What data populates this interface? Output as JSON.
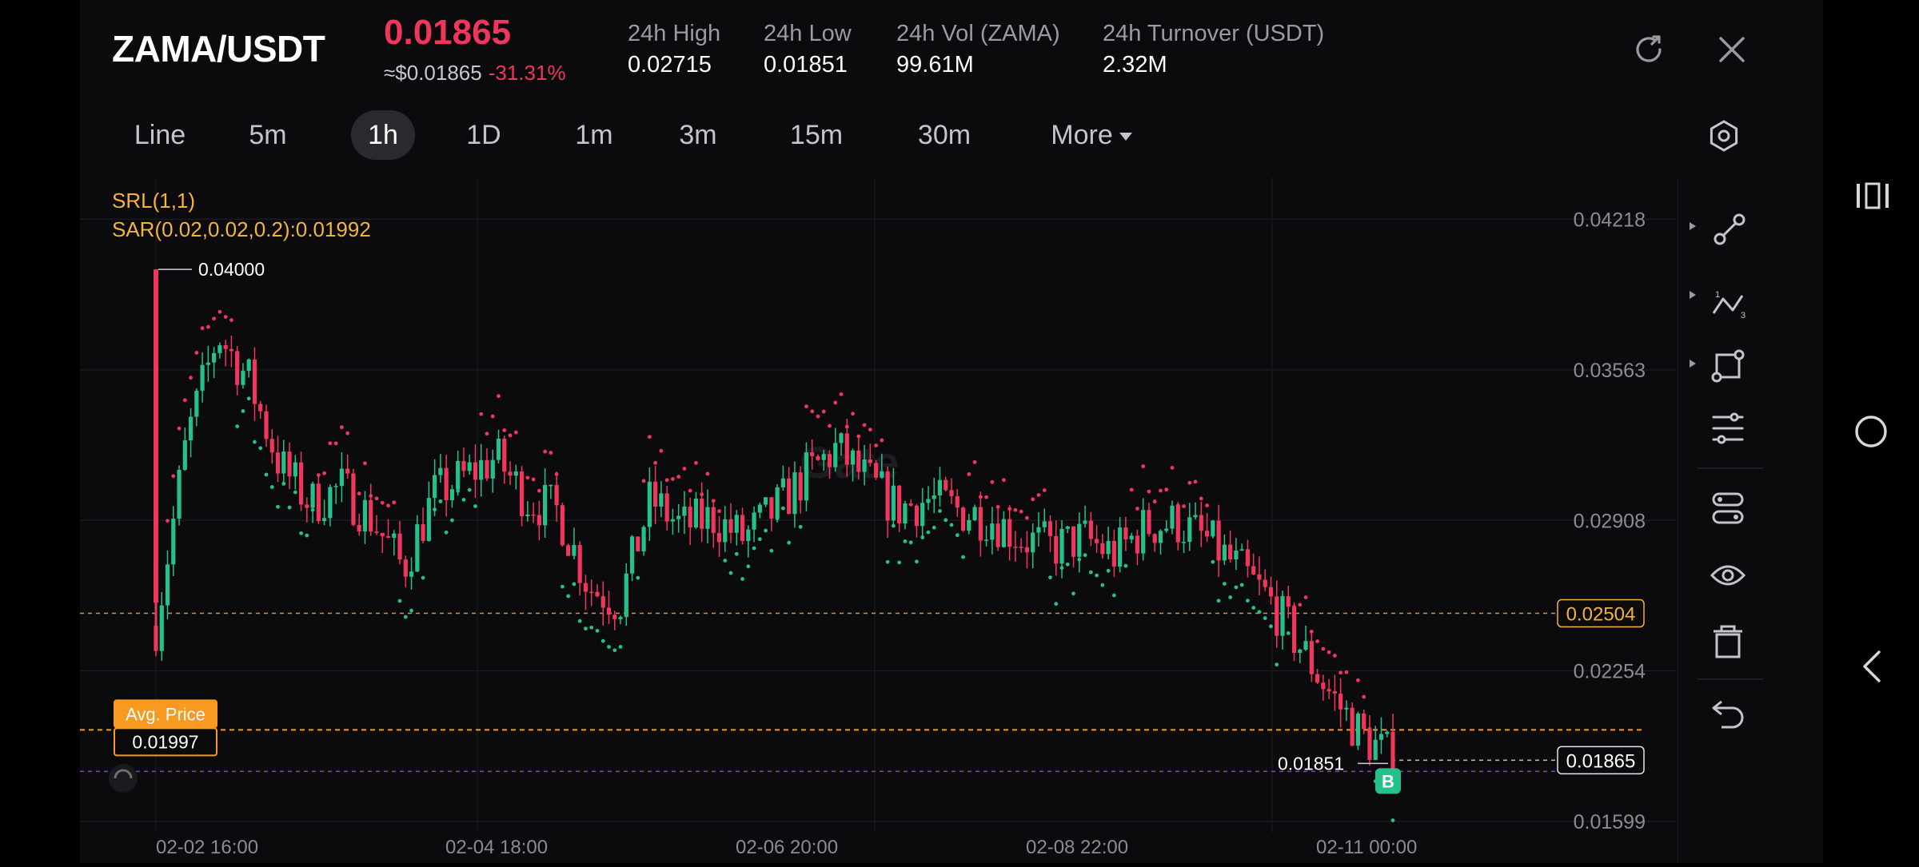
{
  "header": {
    "pair": "ZAMA/USDT",
    "last_price": "0.01865",
    "usd_price": "≈$0.01865",
    "change": "-31.31%",
    "stats": [
      {
        "label": "24h  High",
        "value": "0.02715"
      },
      {
        "label": "24h  Low",
        "value": "0.01851"
      },
      {
        "label": "24h  Vol (ZAMA)",
        "value": "99.61M"
      },
      {
        "label": "24h  Turnover (USDT)",
        "value": "2.32M"
      }
    ]
  },
  "timeframes": [
    {
      "label": "Line",
      "active": false
    },
    {
      "label": "5m",
      "active": false
    },
    {
      "label": "1h",
      "active": true
    },
    {
      "label": "1D",
      "active": false
    },
    {
      "label": "1m",
      "active": false
    },
    {
      "label": "3m",
      "active": false
    },
    {
      "label": "15m",
      "active": false
    },
    {
      "label": "30m",
      "active": false
    },
    {
      "label": "More",
      "active": false
    }
  ],
  "indicators": {
    "srl": "SRL(1,1)",
    "sar": "SAR(0.02,0.02,0.2):0.01992"
  },
  "chart_data": {
    "type": "candlestick",
    "watermark": "Gate",
    "y_ticks": [
      "0.04218",
      "0.03563",
      "0.02908",
      "0.02254",
      "0.01599"
    ],
    "ylim": [
      0.0155,
      0.044
    ],
    "x_ticks": [
      "02-02 16:00",
      "02-04 18:00",
      "02-06 20:00",
      "02-08 22:00",
      "02-11 00:00"
    ],
    "high_marker": "0.04000",
    "low_marker": "0.01851",
    "current_price": "0.01865",
    "horizontal_line": "0.02504",
    "avg_price_label": "Avg. Price",
    "avg_price": "0.01997",
    "buy_marker": "B",
    "colors": {
      "up": "#26c08a",
      "down": "#f0365c",
      "avg": "#f79a1f",
      "line": "#f5b33b"
    },
    "close_path": [
      0.0245,
      0.0326,
      0.0372,
      0.0352,
      0.0315,
      0.0298,
      0.0305,
      0.0291,
      0.027,
      0.0302,
      0.031,
      0.0318,
      0.03,
      0.0295,
      0.0262,
      0.0255,
      0.03,
      0.0288,
      0.0292,
      0.0283,
      0.0295,
      0.031,
      0.0322,
      0.0308,
      0.0296,
      0.03,
      0.0295,
      0.0292,
      0.0283,
      0.0279,
      0.0283,
      0.0276,
      0.0288,
      0.029,
      0.0282,
      0.027,
      0.0256,
      0.0236,
      0.0215,
      0.0197,
      0.0187
    ]
  },
  "toolbar": {
    "icons": [
      "trendline-icon",
      "wave-icon",
      "shape-icon",
      "adjust-icon",
      "layout-icon",
      "eye-icon",
      "trash-icon",
      "undo-icon"
    ]
  }
}
